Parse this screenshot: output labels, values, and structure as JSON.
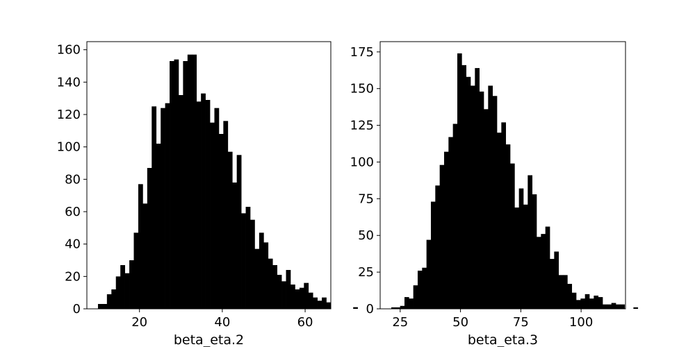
{
  "chart_data": [
    {
      "type": "bar",
      "xlabel": "beta_eta.2",
      "ylabel": "",
      "xlim": [
        7.3,
        66.2
      ],
      "ylim": [
        0,
        165
      ],
      "xticks": [
        20,
        40,
        60
      ],
      "yticks": [
        0,
        20,
        40,
        60,
        80,
        100,
        120,
        140,
        160
      ],
      "bin_start": 9.98,
      "bin_width": 1.081,
      "values": [
        3,
        3,
        9,
        12,
        20,
        27,
        22,
        30,
        47,
        77,
        65,
        87,
        125,
        102,
        124,
        127,
        153,
        154,
        132,
        153,
        157,
        157,
        128,
        133,
        129,
        115,
        124,
        108,
        116,
        97,
        78,
        95,
        59,
        63,
        55,
        37,
        47,
        41,
        31,
        27,
        21,
        17,
        24,
        15,
        12,
        13,
        16,
        10,
        7,
        5,
        7,
        4,
        0,
        0,
        0,
        0,
        0,
        1
      ],
      "color": "#000000"
    },
    {
      "type": "bar",
      "xlabel": "beta_eta.3",
      "ylabel": "",
      "xlim": [
        16.7,
        118.4
      ],
      "ylim": [
        0,
        182
      ],
      "xticks": [
        25,
        50,
        75,
        100
      ],
      "yticks": [
        0,
        25,
        50,
        75,
        100,
        125,
        150,
        175
      ],
      "bin_start": 21.3,
      "bin_width": 1.825,
      "values": [
        1,
        1,
        2,
        8,
        7,
        16,
        26,
        28,
        47,
        73,
        84,
        98,
        107,
        117,
        126,
        174,
        166,
        158,
        152,
        164,
        148,
        136,
        152,
        145,
        120,
        127,
        112,
        99,
        69,
        82,
        71,
        91,
        78,
        49,
        51,
        56,
        34,
        39,
        23,
        23,
        17,
        11,
        6,
        7,
        10,
        7,
        9,
        8,
        3,
        3,
        4,
        3,
        3,
        0,
        0,
        1
      ],
      "color": "#000000"
    }
  ]
}
